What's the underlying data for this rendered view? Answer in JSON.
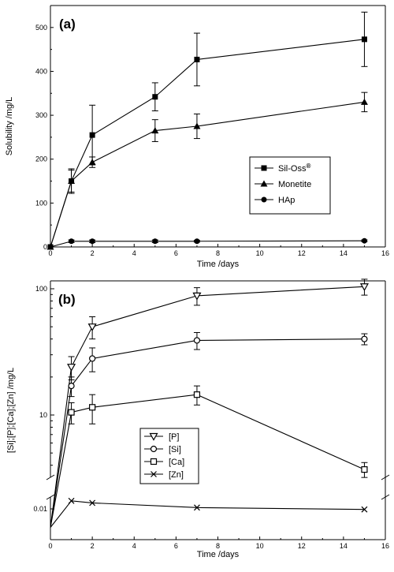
{
  "chart_data": [
    {
      "panel_label": "(a)",
      "type": "line",
      "xlabel": "Time /days",
      "ylabel": "Solubility /mg/L",
      "xlim": [
        0,
        16
      ],
      "ylim": [
        0,
        550
      ],
      "xticks": [
        0,
        2,
        4,
        6,
        8,
        10,
        12,
        14,
        16
      ],
      "yticks": [
        0,
        100,
        200,
        300,
        400,
        500
      ],
      "legend": "center-right",
      "series": [
        {
          "name": "Sil-Oss",
          "name_sup": "®",
          "marker": "filled-square",
          "x": [
            0,
            1,
            2,
            5,
            7,
            15
          ],
          "y": [
            0,
            150,
            255,
            342,
            427,
            473
          ],
          "err": [
            0,
            28,
            68,
            32,
            60,
            62
          ]
        },
        {
          "name": "Monetite",
          "marker": "filled-triangle",
          "x": [
            0,
            1,
            2,
            5,
            7,
            15
          ],
          "y": [
            0,
            150,
            193,
            265,
            275,
            330
          ],
          "err": [
            0,
            25,
            12,
            25,
            28,
            22
          ]
        },
        {
          "name": "HAp",
          "marker": "filled-circle",
          "x": [
            0,
            1,
            2,
            5,
            7,
            15
          ],
          "y": [
            0,
            13,
            13,
            13,
            13,
            14
          ],
          "err": [
            0,
            3,
            3,
            3,
            2,
            2
          ]
        }
      ]
    },
    {
      "panel_label": "(b)",
      "type": "line",
      "xlabel": "Time /days",
      "ylabel": "[Si];[P];[Ca];[Zn] /mg/L",
      "xlim": [
        0,
        16
      ],
      "y_scale": "log (broken axis)",
      "xticks": [
        0,
        2,
        4,
        6,
        8,
        10,
        12,
        14,
        16
      ],
      "yticks_upper": [
        10,
        100
      ],
      "yticks_lower": [
        0.01
      ],
      "legend": "lower-left",
      "series": [
        {
          "name": "[P]",
          "marker": "open-down-triangle",
          "x": [
            0,
            1,
            2,
            7,
            15
          ],
          "y": [
            0.005,
            24,
            50,
            88,
            104
          ],
          "err": [
            0,
            5,
            10,
            14,
            15
          ]
        },
        {
          "name": "[Si]",
          "marker": "open-circle",
          "x": [
            0,
            1,
            2,
            7,
            15
          ],
          "y": [
            0.005,
            17,
            28,
            39,
            40
          ],
          "err": [
            0,
            3,
            6,
            6,
            4
          ]
        },
        {
          "name": "[Ca]",
          "marker": "open-square",
          "x": [
            0,
            1,
            2,
            7,
            15
          ],
          "y": [
            0.005,
            10.5,
            11.5,
            14.5,
            3.7
          ],
          "err": [
            0,
            2,
            3,
            2.5,
            0.5
          ]
        },
        {
          "name": "[Zn]",
          "marker": "x",
          "x": [
            0,
            1,
            2,
            7,
            15
          ],
          "y": [
            0.005,
            0.0135,
            0.0125,
            0.0105,
            0.0098
          ],
          "err": [
            0,
            0,
            0,
            0,
            0
          ]
        }
      ]
    }
  ]
}
